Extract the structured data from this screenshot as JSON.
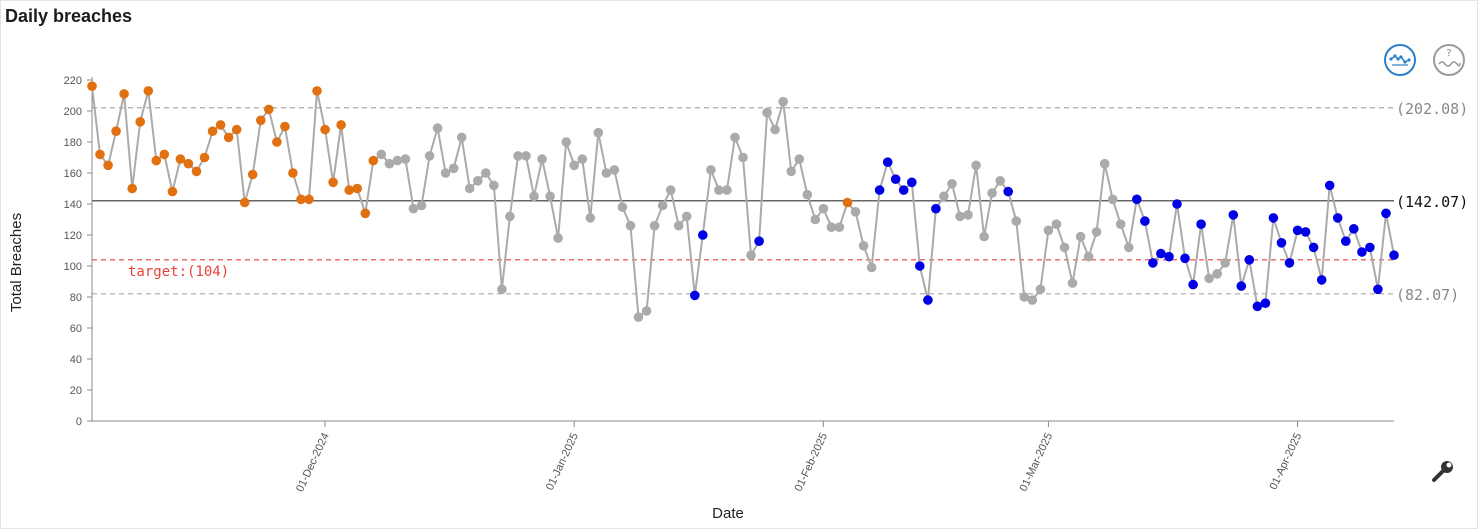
{
  "chart_data": {
    "type": "line",
    "title": "Daily breaches",
    "xlabel": "Date",
    "ylabel": "Total Breaches",
    "ylim": [
      0,
      220
    ],
    "yticks": [
      0,
      20,
      40,
      60,
      80,
      100,
      120,
      140,
      160,
      180,
      200,
      220
    ],
    "x_start": "2024-11-02",
    "x_end": "2025-04-16",
    "xticks": [
      {
        "label": "01-Dec-2024",
        "day": 29
      },
      {
        "label": "01-Jan-2025",
        "day": 60
      },
      {
        "label": "01-Feb-2025",
        "day": 91
      },
      {
        "label": "01-Mar-2025",
        "day": 119
      },
      {
        "label": "01-Apr-2025",
        "day": 150
      }
    ],
    "reference_lines": [
      {
        "name": "upper",
        "value": 202.08,
        "label": "(202.08)",
        "color": "#aaaaaa",
        "style": "dashed"
      },
      {
        "name": "mean",
        "value": 142.07,
        "label": "(142.07)",
        "color": "#333333",
        "style": "solid"
      },
      {
        "name": "lower",
        "value": 82.07,
        "label": "(82.07)",
        "color": "#aaaaaa",
        "style": "dashed"
      },
      {
        "name": "target",
        "value": 104,
        "label": "target:(104)",
        "color": "#e8413c",
        "style": "dashed"
      }
    ],
    "colors": {
      "line": "#aaaaaa",
      "O": "#e07010",
      "G": "#aaaaaa",
      "B": "#0000e6"
    },
    "values": [
      216,
      172,
      165,
      187,
      211,
      150,
      193,
      213,
      168,
      172,
      148,
      169,
      166,
      161,
      170,
      187,
      191,
      183,
      188,
      141,
      159,
      194,
      201,
      180,
      190,
      160,
      143,
      143,
      213,
      188,
      154,
      191,
      149,
      150,
      134,
      168,
      172,
      166,
      168,
      169,
      137,
      139,
      171,
      189,
      160,
      163,
      183,
      150,
      155,
      160,
      152,
      85,
      132,
      171,
      171,
      145,
      169,
      145,
      118,
      180,
      165,
      169,
      131,
      186,
      160,
      162,
      138,
      126,
      67,
      71,
      126,
      139,
      149,
      126,
      132,
      81,
      120,
      162,
      149,
      149,
      183,
      170,
      107,
      116,
      199,
      188,
      206,
      161,
      169,
      146,
      130,
      137,
      125,
      125,
      141,
      135,
      113,
      99,
      149,
      167,
      156,
      149,
      154,
      100,
      78,
      137,
      145,
      153,
      132,
      133,
      165,
      119,
      147,
      155,
      148,
      129,
      80,
      78,
      85,
      123,
      127,
      112,
      89,
      119,
      106,
      122,
      166,
      143,
      127,
      112,
      143,
      129,
      102,
      108,
      106,
      140,
      105,
      88,
      127,
      92,
      95,
      102,
      133,
      87,
      104,
      74,
      76,
      131,
      115,
      102,
      123,
      122,
      112,
      91,
      152,
      131,
      116,
      124,
      109,
      112,
      85,
      134,
      107
    ],
    "point_colors": "OOOOOOOOOOOOOOOOOOOOOOOOOOOOOOOOOOOOGGGGGGGGGGGGGGGGGGGGGGGGGGGGGGGGGGGGGGGBBGGGGGGBGGGGGGGGGGOGGGBBBBBBBBGGGGGGGGBGGGGGGGGGGGGGGGBBBBBBBBBGGGBBBBBBBBBBBBBBBBBBBBBBBBBBBBBBBBBB"
  }
}
